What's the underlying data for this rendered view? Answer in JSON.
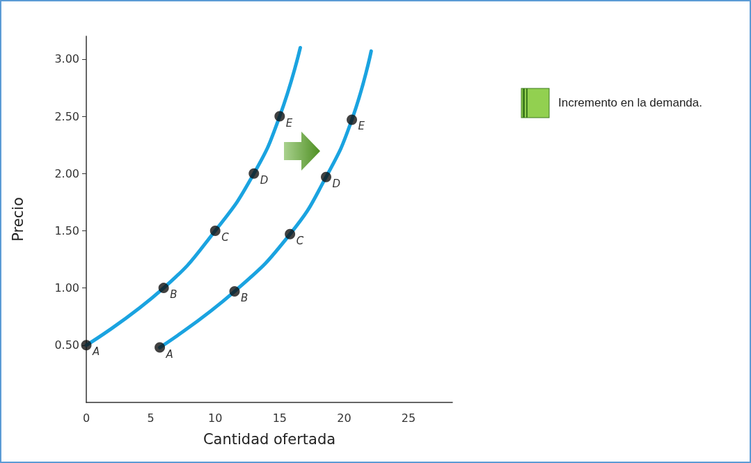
{
  "chart_data": {
    "type": "line",
    "xlabel": "Cantidad ofertada",
    "ylabel": "Precio",
    "xlim": [
      0,
      28.4
    ],
    "ylim": [
      0,
      3.2
    ],
    "xticks": [
      0,
      5,
      10,
      15,
      20,
      25
    ],
    "yticks": [
      {
        "value": 0.5,
        "label": "0.50"
      },
      {
        "value": 1,
        "label": "1.00"
      },
      {
        "value": 1.5,
        "label": "1.50"
      },
      {
        "value": 2,
        "label": "2.00"
      },
      {
        "value": 2.5,
        "label": "2.50"
      },
      {
        "value": 3,
        "label": "3.00"
      }
    ],
    "grid": false,
    "line_style": "solid",
    "series": [
      {
        "marker": "none",
        "color": "#1aa3e0",
        "x": [
          0,
          6,
          10,
          13,
          15,
          16.6
        ],
        "values": [
          0.5,
          1.0,
          1.5,
          2.0,
          2.5,
          3.1
        ]
      },
      {
        "marker": "none",
        "color": "#1aa3e0",
        "x": [
          5.7,
          11.5,
          15.8,
          18.6,
          20.6,
          22.1
        ],
        "values": [
          0.48,
          0.97,
          1.47,
          1.97,
          2.47,
          3.07
        ]
      },
      {
        "type": "scatter",
        "marker": "circle",
        "color": "#111111",
        "x": [
          0,
          6,
          10,
          13,
          15
        ],
        "values": [
          0.5,
          1.0,
          1.5,
          2.0,
          2.5
        ]
      },
      {
        "type": "scatter",
        "marker": "circle",
        "color": "#111111",
        "x": [
          5.7,
          11.5,
          15.8,
          18.6,
          20.6
        ],
        "values": [
          0.48,
          0.97,
          1.47,
          1.97,
          2.47
        ]
      }
    ],
    "annotations": [
      {
        "text": "A",
        "x": 0,
        "y": 0.5
      },
      {
        "text": "B",
        "x": 6,
        "y": 1.0
      },
      {
        "text": "C",
        "x": 10,
        "y": 1.5
      },
      {
        "text": "D",
        "x": 13,
        "y": 2.0
      },
      {
        "text": "E",
        "x": 15,
        "y": 2.5
      },
      {
        "text": "A",
        "x": 5.7,
        "y": 0.48
      },
      {
        "text": "B",
        "x": 11.5,
        "y": 0.97
      },
      {
        "text": "C",
        "x": 15.8,
        "y": 1.47
      },
      {
        "text": "D",
        "x": 18.6,
        "y": 1.97
      },
      {
        "text": "E",
        "x": 20.6,
        "y": 2.47
      },
      "Incremento en la demanda."
    ]
  }
}
